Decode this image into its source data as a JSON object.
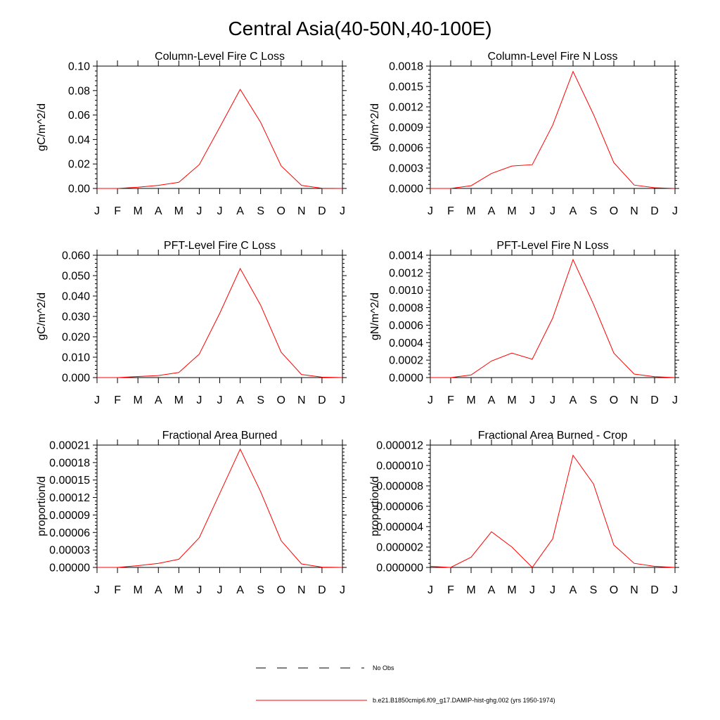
{
  "page_title": "Central Asia(40-50N,40-100E)",
  "colors": {
    "series": "#ff0000",
    "axis": "#000000"
  },
  "legend": {
    "obs_label": "No Obs",
    "model_label": "b.e21.B1850cmip6.f09_g17.DAMIP-hist-ghg.002 (yrs 1950-1974)"
  },
  "chart_data": [
    {
      "type": "line",
      "title": "Column-Level Fire C Loss",
      "ylabel": "gC/m^2/d",
      "categories": [
        "J",
        "F",
        "M",
        "A",
        "M",
        "J",
        "J",
        "A",
        "S",
        "O",
        "N",
        "D",
        "J"
      ],
      "ylim": [
        0,
        0.1
      ],
      "yticks": [
        "0.00",
        "0.02",
        "0.04",
        "0.06",
        "0.08",
        "0.10"
      ],
      "series": [
        {
          "values": [
            0.0,
            0.0,
            0.001,
            0.0025,
            0.005,
            0.0195,
            0.05,
            0.081,
            0.054,
            0.0185,
            0.0025,
            0.0002,
            0.0
          ]
        }
      ]
    },
    {
      "type": "line",
      "title": "Column-Level Fire N Loss",
      "ylabel": "gN/m^2/d",
      "categories": [
        "J",
        "F",
        "M",
        "A",
        "M",
        "J",
        "J",
        "A",
        "S",
        "O",
        "N",
        "D",
        "J"
      ],
      "ylim": [
        0,
        0.0018
      ],
      "yticks": [
        "0.0000",
        "0.0003",
        "0.0006",
        "0.0009",
        "0.0012",
        "0.0015",
        "0.0018"
      ],
      "series": [
        {
          "values": [
            0.0,
            0.0,
            4e-05,
            0.00022,
            0.00033,
            0.00035,
            0.00093,
            0.00172,
            0.00109,
            0.00038,
            5e-05,
            1e-05,
            0.0
          ]
        }
      ]
    },
    {
      "type": "line",
      "title": "PFT-Level Fire C Loss",
      "ylabel": "gC/m^2/d",
      "categories": [
        "J",
        "F",
        "M",
        "A",
        "M",
        "J",
        "J",
        "A",
        "S",
        "O",
        "N",
        "D",
        "J"
      ],
      "ylim": [
        0,
        0.06
      ],
      "yticks": [
        "0.000",
        "0.010",
        "0.020",
        "0.030",
        "0.040",
        "0.050",
        "0.060"
      ],
      "series": [
        {
          "values": [
            0.0,
            0.0,
            0.0005,
            0.001,
            0.0025,
            0.0115,
            0.0315,
            0.0535,
            0.0355,
            0.0125,
            0.0015,
            0.0002,
            0.0
          ]
        }
      ]
    },
    {
      "type": "line",
      "title": "PFT-Level Fire N Loss",
      "ylabel": "gN/m^2/d",
      "categories": [
        "J",
        "F",
        "M",
        "A",
        "M",
        "J",
        "J",
        "A",
        "S",
        "O",
        "N",
        "D",
        "J"
      ],
      "ylim": [
        0,
        0.0014
      ],
      "yticks": [
        "0.0000",
        "0.0002",
        "0.0004",
        "0.0006",
        "0.0008",
        "0.0010",
        "0.0012",
        "0.0014"
      ],
      "series": [
        {
          "values": [
            0.0,
            0.0,
            3e-05,
            0.00019,
            0.00028,
            0.00021,
            0.00068,
            0.00135,
            0.00084,
            0.00028,
            4e-05,
            1e-05,
            0.0
          ]
        }
      ]
    },
    {
      "type": "line",
      "title": "Fractional Area Burned",
      "ylabel": "proportion/d",
      "categories": [
        "J",
        "F",
        "M",
        "A",
        "M",
        "J",
        "J",
        "A",
        "S",
        "O",
        "N",
        "D",
        "J"
      ],
      "ylim": [
        0,
        0.00021
      ],
      "yticks": [
        "0.00000",
        "0.00003",
        "0.00006",
        "0.00009",
        "0.00012",
        "0.00015",
        "0.00018",
        "0.00021"
      ],
      "series": [
        {
          "values": [
            0.0,
            0.0,
            3e-06,
            7e-06,
            1.4e-05,
            5.1e-05,
            0.000127,
            0.000203,
            0.00013,
            4.6e-05,
            6e-06,
            5e-07,
            0.0
          ]
        }
      ]
    },
    {
      "type": "line",
      "title": "Fractional Area Burned - Crop",
      "ylabel": "proportion/d",
      "categories": [
        "J",
        "F",
        "M",
        "A",
        "M",
        "J",
        "J",
        "A",
        "S",
        "O",
        "N",
        "D",
        "J"
      ],
      "ylim": [
        0,
        1.2e-05
      ],
      "yticks": [
        "0.000000",
        "0.000002",
        "0.000004",
        "0.000006",
        "0.000008",
        "0.000010",
        "0.000012"
      ],
      "series": [
        {
          "values": [
            1e-07,
            0.0,
            1e-06,
            3.5e-06,
            2e-06,
            0.0,
            2.8e-06,
            1.1e-05,
            8.2e-06,
            2.2e-06,
            4e-07,
            1e-07,
            0.0
          ]
        }
      ]
    }
  ]
}
